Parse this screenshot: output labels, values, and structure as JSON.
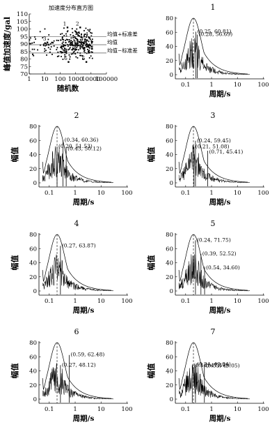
{
  "chart_data": [
    {
      "type": "scatter",
      "title": "加速度分布直方图",
      "xlabel": "随机数",
      "ylabel": "峰值加速度/gal",
      "xscale": "log",
      "xlim": [
        1,
        100000
      ],
      "ylim": [
        70,
        110
      ],
      "xticks": [
        "1",
        "10",
        "100",
        "1000",
        "10000",
        "100000"
      ],
      "yticks": [
        "70",
        "75",
        "80",
        "85",
        "90",
        "95",
        "100",
        "105",
        "110"
      ],
      "reference_lines": [
        {
          "label": "均值+标准差",
          "y": 95
        },
        {
          "label": "均值",
          "y": 89.5
        },
        {
          "label": "均值−标准差",
          "y": 84
        }
      ],
      "marked_points": [
        {
          "label": "1",
          "x": 300,
          "y": 101
        },
        {
          "label": "2",
          "x": 2000,
          "y": 101
        },
        {
          "label": "3",
          "x": 15,
          "y": 91
        },
        {
          "label": "4",
          "x": 8000,
          "y": 94
        },
        {
          "label": "5",
          "x": 5000,
          "y": 78
        },
        {
          "label": "6",
          "x": 350,
          "y": 78
        },
        {
          "label": "7",
          "x": 7000,
          "y": 88
        }
      ]
    },
    {
      "type": "line",
      "panel_label": "1",
      "xlabel": "周期/s",
      "ylabel": "幅值",
      "xscale": "log",
      "xlim": [
        0.04,
        110
      ],
      "ylim": [
        0,
        80
      ],
      "xticks": [
        "0.1",
        "1",
        "10",
        "100"
      ],
      "yticks": [
        "0",
        "20",
        "40",
        "60",
        "80"
      ],
      "target_peak_period": 0.2,
      "annotations": [
        {
          "text": "(0.25, 60.81)",
          "x": 0.25,
          "y": 60.81
        },
        {
          "text": "(0.28, 56.69)",
          "x": 0.28,
          "y": 56.69
        }
      ]
    },
    {
      "type": "line",
      "panel_label": "2",
      "xlabel": "周期/s",
      "ylabel": "幅值",
      "xscale": "log",
      "xlim": [
        0.04,
        110
      ],
      "ylim": [
        0,
        80
      ],
      "xticks": [
        "0.1",
        "1",
        "10",
        "100"
      ],
      "yticks": [
        "0",
        "20",
        "40",
        "60",
        "80"
      ],
      "target_peak_period": 0.2,
      "annotations": [
        {
          "text": "(0.34, 60.36)",
          "x": 0.34,
          "y": 60.36
        },
        {
          "text": "(0.20, 51.53)",
          "x": 0.2,
          "y": 51.53
        },
        {
          "text": "(0.45, 50.12)",
          "x": 0.45,
          "y": 50.12
        }
      ]
    },
    {
      "type": "line",
      "panel_label": "3",
      "xlabel": "周期/s",
      "ylabel": "幅值",
      "xscale": "log",
      "xlim": [
        0.04,
        110
      ],
      "ylim": [
        0,
        80
      ],
      "xticks": [
        "0.1",
        "1",
        "10",
        "100"
      ],
      "yticks": [
        "0",
        "20",
        "40",
        "60",
        "80"
      ],
      "target_peak_period": 0.2,
      "annotations": [
        {
          "text": "(0.24, 59.45)",
          "x": 0.24,
          "y": 59.45
        },
        {
          "text": "(0.21, 51.08)",
          "x": 0.21,
          "y": 51.08
        },
        {
          "text": "(0.71, 45.41)",
          "x": 0.71,
          "y": 45.41
        }
      ]
    },
    {
      "type": "line",
      "panel_label": "4",
      "xlabel": "周期/s",
      "ylabel": "幅值",
      "xscale": "log",
      "xlim": [
        0.04,
        110
      ],
      "ylim": [
        0,
        80
      ],
      "xticks": [
        "0.1",
        "1",
        "10",
        "100"
      ],
      "yticks": [
        "0",
        "20",
        "40",
        "60",
        "80"
      ],
      "target_peak_period": 0.2,
      "annotations": [
        {
          "text": "(0.27, 63.87)",
          "x": 0.27,
          "y": 63.87
        }
      ]
    },
    {
      "type": "line",
      "panel_label": "5",
      "xlabel": "周期/s",
      "ylabel": "幅值",
      "xscale": "log",
      "xlim": [
        0.04,
        110
      ],
      "ylim": [
        0,
        80
      ],
      "xticks": [
        "0.1",
        "1",
        "10",
        "100"
      ],
      "yticks": [
        "0",
        "20",
        "40",
        "60",
        "80"
      ],
      "target_peak_period": 0.2,
      "annotations": [
        {
          "text": "(0.24, 71.75)",
          "x": 0.24,
          "y": 71.75
        },
        {
          "text": "(0.39, 52.52)",
          "x": 0.39,
          "y": 52.52
        },
        {
          "text": "(0.54, 34.60)",
          "x": 0.54,
          "y": 34.6
        }
      ]
    },
    {
      "type": "line",
      "panel_label": "6",
      "xlabel": "周期/s",
      "ylabel": "幅值",
      "xscale": "log",
      "xlim": [
        0.04,
        110
      ],
      "ylim": [
        0,
        80
      ],
      "xticks": [
        "0.1",
        "1",
        "10",
        "100"
      ],
      "yticks": [
        "0",
        "20",
        "40",
        "60",
        "80"
      ],
      "target_peak_period": 0.2,
      "annotations": [
        {
          "text": "(0.59, 62.48)",
          "x": 0.59,
          "y": 62.48
        },
        {
          "text": "(0.27, 48.12)",
          "x": 0.27,
          "y": 48.12
        }
      ]
    },
    {
      "type": "line",
      "panel_label": "7",
      "xlabel": "周期/s",
      "ylabel": "幅值",
      "xscale": "log",
      "xlim": [
        0.04,
        110
      ],
      "ylim": [
        0,
        80
      ],
      "xticks": [
        "0.1",
        "1",
        "10",
        "100"
      ],
      "yticks": [
        "0",
        "20",
        "40",
        "60",
        "80"
      ],
      "target_peak_period": 0.2,
      "annotations": [
        {
          "text": "(0.24, 49.04)",
          "x": 0.24,
          "y": 49.04
        },
        {
          "text": "(0.18, 47.47)",
          "x": 0.18,
          "y": 47.47
        },
        {
          "text": "(0.53, 49.05)",
          "x": 0.53,
          "y": 49.05
        }
      ]
    }
  ]
}
